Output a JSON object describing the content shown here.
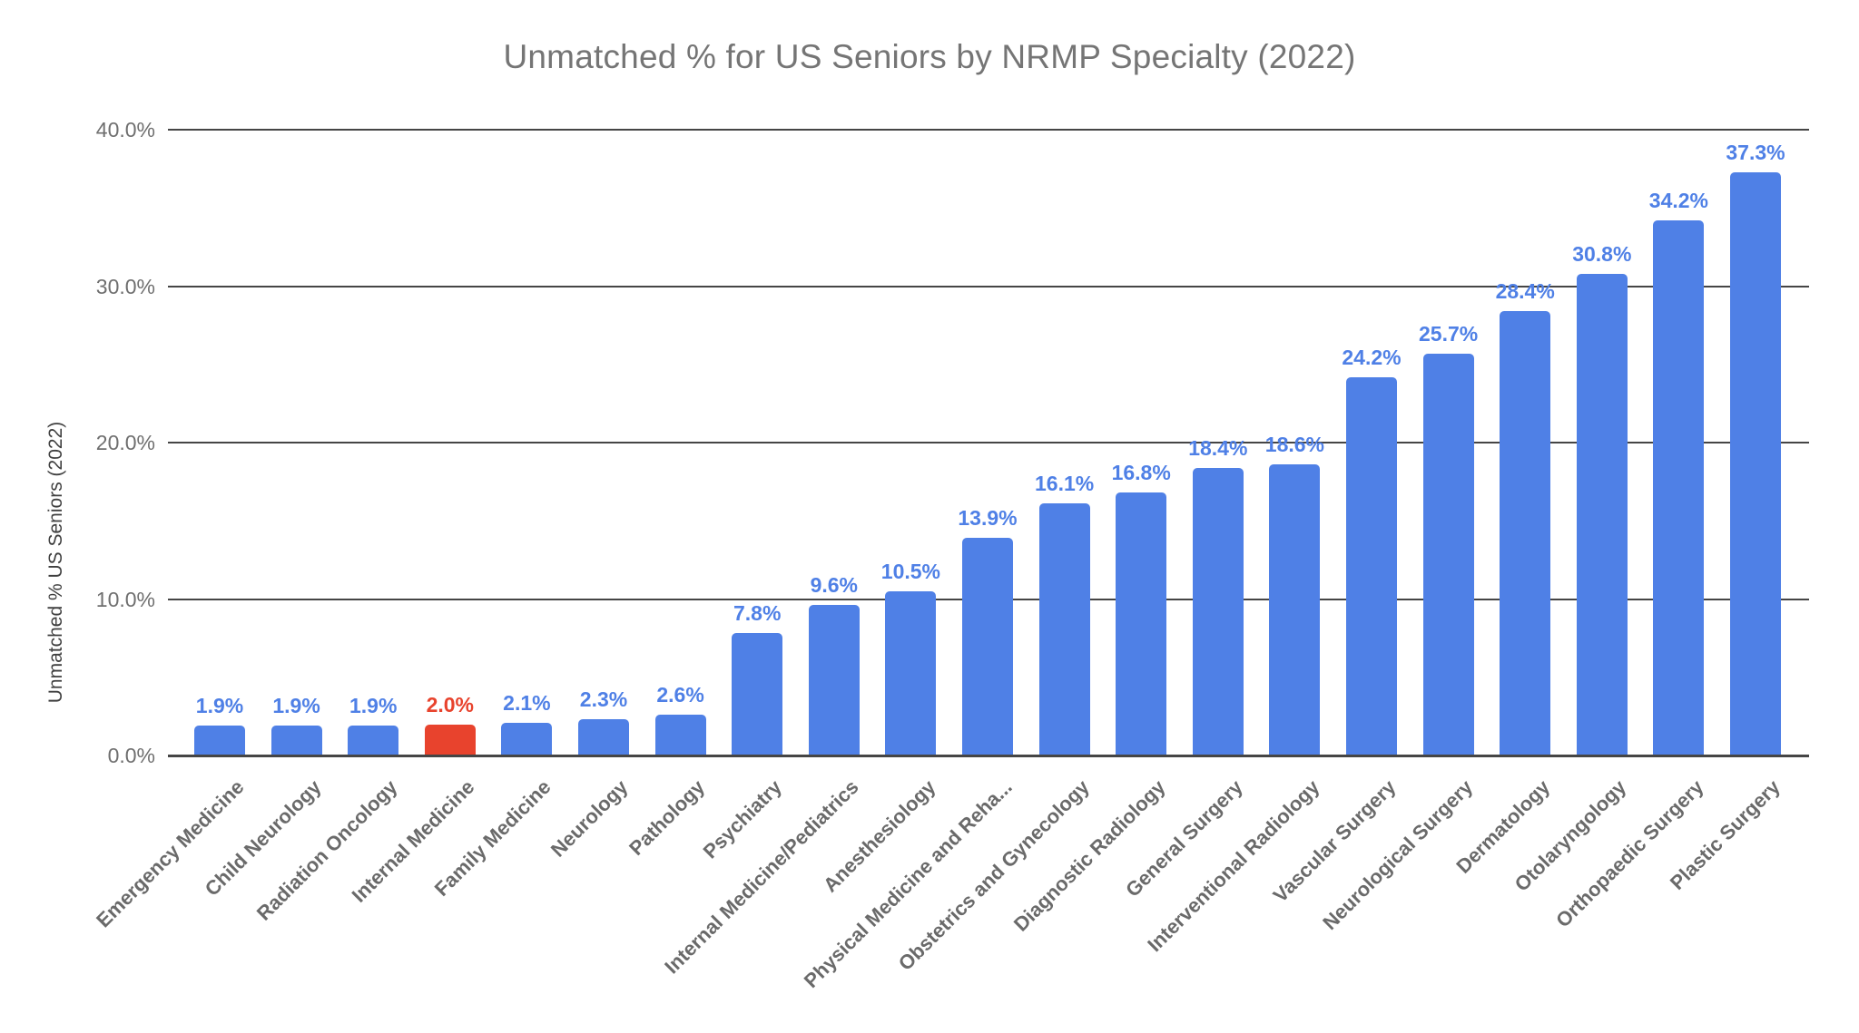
{
  "chart_data": {
    "type": "bar",
    "title": "Unmatched % for US Seniors by NRMP Specialty (2022)",
    "ylabel": "Unmatched % US Seniors (2022)",
    "xlabel": "",
    "ylim": [
      0,
      40
    ],
    "ytick_labels": [
      "0.0%",
      "10.0%",
      "20.0%",
      "30.0%",
      "40.0%"
    ],
    "grid": true,
    "legend_position": "none",
    "categories": [
      "Emergency Medicine",
      "Child Neurology",
      "Radiation Oncology",
      "Internal Medicine",
      "Family Medicine",
      "Neurology",
      "Pathology",
      "Psychiatry",
      "Internal Medicine/Pediatrics",
      "Anesthesiology",
      "Physical Medicine and Reha...",
      "Obstetrics and Gynecology",
      "Diagnostic Radiology",
      "General Surgery",
      "Interventional Radiology",
      "Vascular Surgery",
      "Neurological Surgery",
      "Dermatology",
      "Otolaryngology",
      "Orthopaedic Surgery",
      "Plastic Surgery"
    ],
    "values": [
      1.9,
      1.9,
      1.9,
      2.0,
      2.1,
      2.3,
      2.6,
      7.8,
      9.6,
      10.5,
      13.9,
      16.1,
      16.8,
      18.4,
      18.6,
      24.2,
      25.7,
      28.4,
      30.8,
      34.2,
      37.3
    ],
    "data_labels": [
      "1.9%",
      "1.9%",
      "1.9%",
      "2.0%",
      "2.1%",
      "2.3%",
      "2.6%",
      "7.8%",
      "9.6%",
      "10.5%",
      "13.9%",
      "16.1%",
      "16.8%",
      "18.4%",
      "18.6%",
      "24.2%",
      "25.7%",
      "28.4%",
      "30.8%",
      "34.2%",
      "37.3%"
    ],
    "highlight_index": 3,
    "colors": {
      "bar": "#4f80e6",
      "highlight_bar": "#e8432d",
      "data_label": "#4f80e6",
      "highlight_data_label": "#e8432d",
      "title": "#757575",
      "axis_tick": "#6f6f6f",
      "category_label": "#6a6a6a",
      "y_axis_title": "#3f3f3f",
      "gridline": "#454545",
      "background": "#ffffff"
    }
  }
}
